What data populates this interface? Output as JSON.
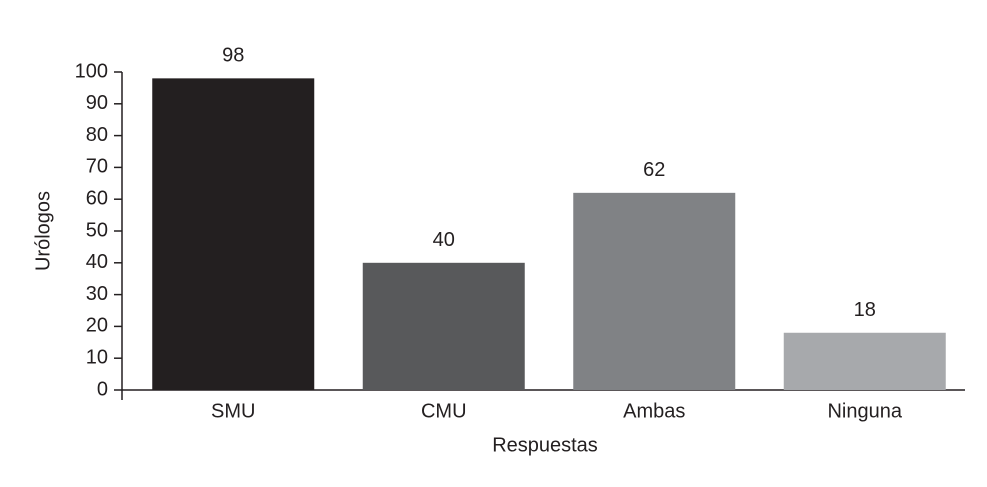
{
  "chart_data": {
    "type": "bar",
    "categories": [
      "SMU",
      "CMU",
      "Ambas",
      "Ninguna"
    ],
    "values": [
      98,
      40,
      62,
      18
    ],
    "colors": [
      "#231f20",
      "#58595b",
      "#808285",
      "#a7a9ac"
    ],
    "x_label": "Respuestas",
    "y_label": "Urólogos",
    "ylim": [
      0,
      100
    ],
    "yticks": [
      0,
      10,
      20,
      30,
      40,
      50,
      60,
      70,
      80,
      90,
      100
    ],
    "data_labels": true
  }
}
